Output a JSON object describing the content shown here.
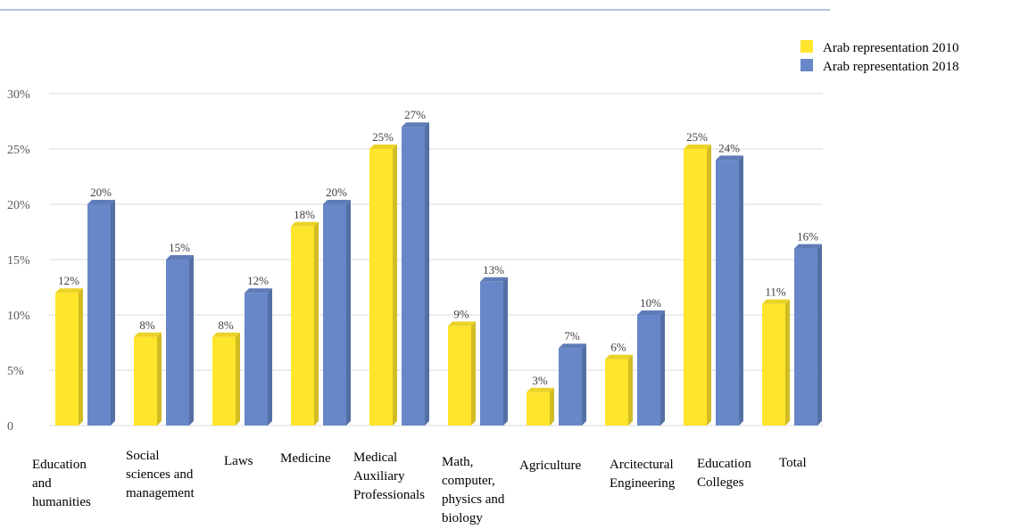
{
  "chart_data": {
    "type": "bar",
    "title": "",
    "xlabel": "",
    "ylabel": "",
    "ylim": [
      0,
      30
    ],
    "yticks": [
      "0",
      "5%",
      "10%",
      "15%",
      "20%",
      "25%",
      "30%"
    ],
    "grid": true,
    "legend_position": "top-right",
    "categories": [
      [
        "Education",
        "and",
        "humanities"
      ],
      [
        "Social",
        "sciences and",
        "management"
      ],
      [
        "Laws"
      ],
      [
        "Medicine"
      ],
      [
        "Medical",
        "Auxiliary",
        "Professionals"
      ],
      [
        "Math,",
        "computer,",
        "physics and",
        "biology"
      ],
      [
        "Agriculture"
      ],
      [
        "Arcitectural",
        "Engineering"
      ],
      [
        "Education",
        "Colleges"
      ],
      [
        "Total"
      ]
    ],
    "series": [
      {
        "name": "Arab representation 2010",
        "color": "#FFE52B",
        "values": [
          12,
          8,
          8,
          18,
          25,
          9,
          3,
          6,
          25,
          11
        ],
        "labels": [
          "12%",
          "8%",
          "8%",
          "18%",
          "25%",
          "9%",
          "3%",
          "6%",
          "25%",
          "11%"
        ]
      },
      {
        "name": "Arab representation 2018",
        "color": "#6787C8",
        "values": [
          20,
          15,
          12,
          20,
          27,
          13,
          7,
          10,
          24,
          16
        ],
        "labels": [
          "20%",
          "15%",
          "12%",
          "20%",
          "27%",
          "13%",
          "7%",
          "10%",
          "24%",
          "16%"
        ]
      }
    ]
  }
}
